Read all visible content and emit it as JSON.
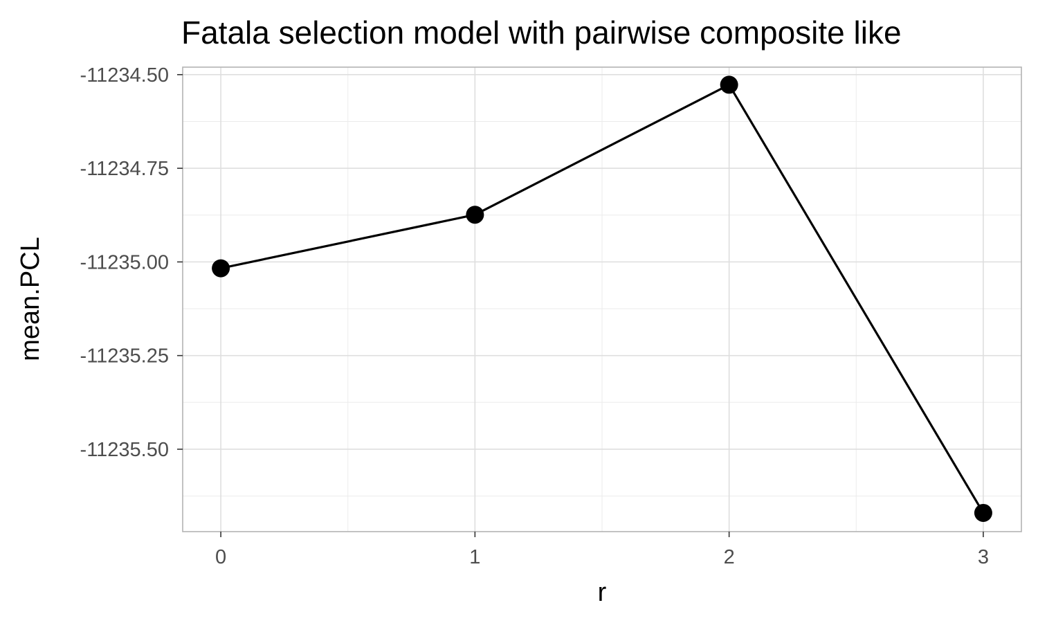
{
  "chart_data": {
    "type": "line",
    "title": "Fatala selection model with pairwise composite like",
    "xlabel": "r",
    "ylabel": "mean.PCL",
    "x": [
      0,
      1,
      2,
      3
    ],
    "x_ticks": [
      "0",
      "1",
      "2",
      "3"
    ],
    "series": [
      {
        "values": [
          -11235.017,
          -11234.874,
          -11234.527,
          -11235.67
        ]
      }
    ],
    "y_ticks": [
      "-11234.50",
      "-11234.75",
      "-11235.00",
      "-11235.25",
      "-11235.50"
    ],
    "ylim": [
      -11235.72,
      -11234.48
    ],
    "xlim": [
      -0.15,
      3.15
    ],
    "grid": true,
    "legend": "none",
    "colors": {
      "line": "#000000",
      "points": "#000000",
      "grid": "#dedede",
      "panel_border": "#b3b3b3",
      "tick_text": "#4d4d4d"
    }
  }
}
